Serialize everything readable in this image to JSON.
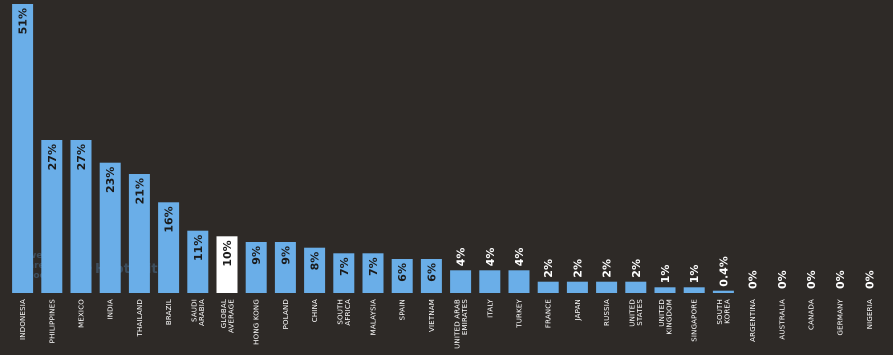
{
  "chart_data": {
    "type": "bar",
    "categories": [
      "INDONESIA",
      "PHILIPPINES",
      "MEXICO",
      "INDIA",
      "THAILAND",
      "BRAZIL",
      "SAUDI ARABIA",
      "GLOBAL AVERAGE",
      "HONG KONG",
      "POLAND",
      "CHINA",
      "SOUTH AFRICA",
      "MALAYSIA",
      "SPAIN",
      "VIETNAM",
      "UNITED ARAB EMIRATES",
      "ITALY",
      "TURKEY",
      "FRANCE",
      "JAPAN",
      "RUSSIA",
      "UNITED STATES",
      "UNITED KINGDOM",
      "SINGAPORE",
      "SOUTH KOREA",
      "ARGENTINA",
      "AUSTRALIA",
      "CANADA",
      "GERMANY",
      "NIGERIA"
    ],
    "category_lines": [
      [
        "INDONESIA"
      ],
      [
        "PHILIPPINES"
      ],
      [
        "MEXICO"
      ],
      [
        "INDIA"
      ],
      [
        "THAILAND"
      ],
      [
        "BRAZIL"
      ],
      [
        "SAUDI",
        "ARABIA"
      ],
      [
        "GLOBAL",
        "AVERAGE"
      ],
      [
        "HONG KONG"
      ],
      [
        "POLAND"
      ],
      [
        "CHINA"
      ],
      [
        "SOUTH",
        "AFRICA"
      ],
      [
        "MALAYSIA"
      ],
      [
        "SPAIN"
      ],
      [
        "VIETNAM"
      ],
      [
        "UNITED ARAB",
        "EMIRATES"
      ],
      [
        "ITALY"
      ],
      [
        "TURKEY"
      ],
      [
        "FRANCE"
      ],
      [
        "JAPAN"
      ],
      [
        "RUSSIA"
      ],
      [
        "UNITED",
        "STATES"
      ],
      [
        "UNITED",
        "KINGDOM"
      ],
      [
        "SINGAPORE"
      ],
      [
        "SOUTH",
        "KOREA"
      ],
      [
        "ARGENTINA"
      ],
      [
        "AUSTRALIA"
      ],
      [
        "CANADA"
      ],
      [
        "GERMANY"
      ],
      [
        "NIGERIA"
      ]
    ],
    "values": [
      51,
      27,
      27,
      23,
      21,
      16,
      11,
      10,
      9,
      9,
      8,
      7,
      7,
      6,
      6,
      4,
      4,
      4,
      2,
      2,
      2,
      2,
      1,
      1,
      0.4,
      0,
      0,
      0,
      0,
      0
    ],
    "labels": [
      "51%",
      "27%",
      "27%",
      "23%",
      "21%",
      "16%",
      "11%",
      "10%",
      "9%",
      "9%",
      "8%",
      "7%",
      "7%",
      "6%",
      "6%",
      "4%",
      "4%",
      "4%",
      "2%",
      "2%",
      "2%",
      "2%",
      "1%",
      "1%",
      "0.4%",
      "0%",
      "0%",
      "0%",
      "0%",
      "0%"
    ],
    "highlight_category": "GLOBAL AVERAGE",
    "ylim": [
      0,
      51
    ],
    "grid": false,
    "colors": {
      "background": "#2e2a27",
      "bar": "#6aaee8",
      "highlight": "#ffffff",
      "label_on_bar": "#1a1a1a",
      "label_above": "#ffffff",
      "category_text": "#ffffff",
      "watermark": "#4a6a88"
    }
  },
  "watermark": {
    "wearesocial": [
      "we",
      "are",
      "social"
    ],
    "hootsuite": "Hootsuite"
  }
}
